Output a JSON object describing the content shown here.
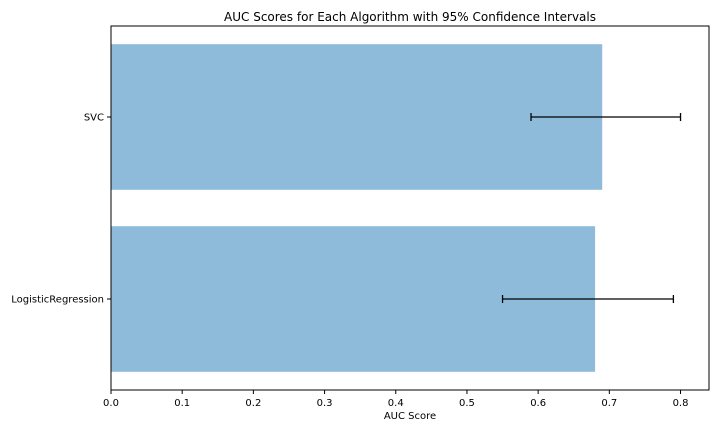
{
  "chart_data": {
    "type": "bar",
    "orientation": "horizontal",
    "title": "AUC Scores for Each Algorithm with 95% Confidence Intervals",
    "xlabel": "AUC Score",
    "ylabel": "",
    "categories": [
      "SVC",
      "LogisticRegression"
    ],
    "values": [
      0.69,
      0.68
    ],
    "ci_lower": [
      0.59,
      0.55
    ],
    "ci_upper": [
      0.8,
      0.79
    ],
    "xlim": [
      0,
      0.84
    ],
    "xticks": [
      "0.0",
      "0.1",
      "0.2",
      "0.3",
      "0.4",
      "0.5",
      "0.6",
      "0.7",
      "0.8"
    ],
    "grid": false,
    "bar_color": "#8fbbda",
    "error_color": "#000000"
  }
}
